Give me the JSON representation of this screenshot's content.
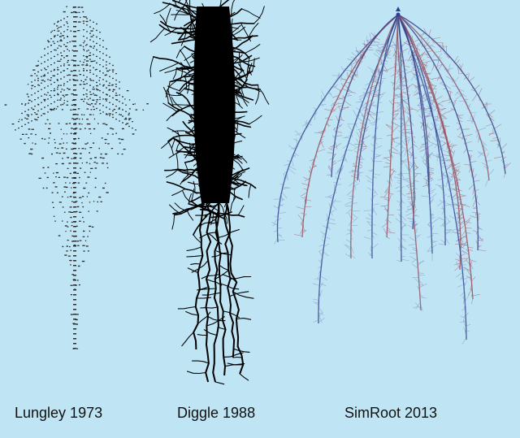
{
  "background_color": "#bfe4f4",
  "panels": [
    {
      "caption": "Lungley 1973",
      "style": "ascii-characters",
      "color": "#2b2b2b"
    },
    {
      "caption": "Diggle 1988",
      "style": "dense-black-branches",
      "color": "#000000"
    },
    {
      "caption": "SimRoot 2013",
      "style": "colored-lateral-roots",
      "colors": [
        "#2e3f8f",
        "#9a4f5e",
        "#7a87b8"
      ]
    }
  ]
}
